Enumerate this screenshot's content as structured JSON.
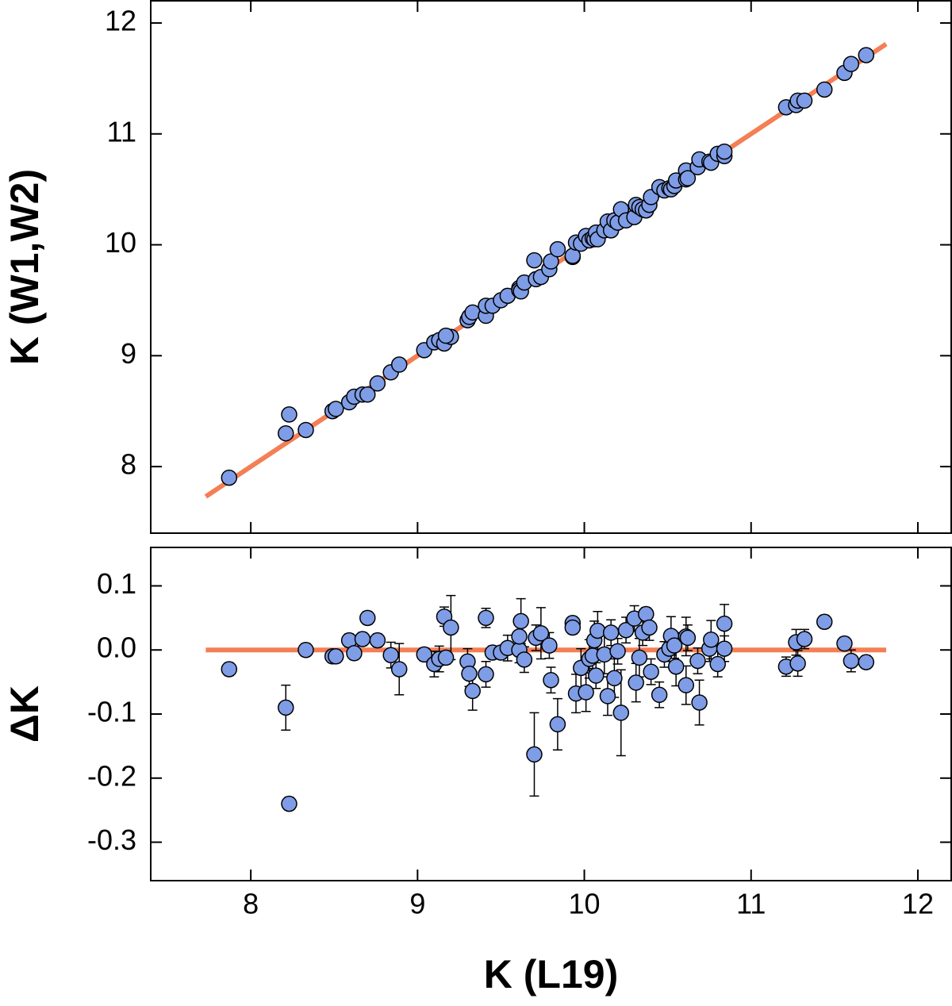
{
  "chart_data": [
    {
      "type": "scatter",
      "ylabel": "K (W1,W2)",
      "xlim": [
        7.4,
        12.2
      ],
      "xticks": [
        8,
        9,
        10,
        11,
        12
      ],
      "ylim": [
        7.4,
        12.2
      ],
      "yticks": [
        8,
        9,
        10,
        11,
        12
      ],
      "series": [
        {
          "mode": "points",
          "color": "#7f9de6",
          "x": [
            7.87,
            8.21,
            8.23,
            8.33,
            8.49,
            8.51,
            8.59,
            8.62,
            8.67,
            8.7,
            8.76,
            8.84,
            8.89,
            9.04,
            9.1,
            9.13,
            9.16,
            9.2,
            9.17,
            9.3,
            9.31,
            9.33,
            9.41,
            9.41,
            9.45,
            9.5,
            9.54,
            9.61,
            9.61,
            9.62,
            9.64,
            9.7,
            9.71,
            9.74,
            9.79,
            9.8,
            9.84,
            9.93,
            9.93,
            9.95,
            9.98,
            10.01,
            10.03,
            10.05,
            10.06,
            10.07,
            10.08,
            10.12,
            10.14,
            10.16,
            10.18,
            10.2,
            10.22,
            10.25,
            10.3,
            10.31,
            10.33,
            10.35,
            10.37,
            10.39,
            10.4,
            10.45,
            10.48,
            10.51,
            10.52,
            10.54,
            10.55,
            10.61,
            10.61,
            10.62,
            10.68,
            10.69,
            10.75,
            10.76,
            10.8,
            10.84,
            10.84,
            11.21,
            11.27,
            11.28,
            11.32,
            11.44,
            11.56,
            11.6,
            11.69
          ],
          "values": [
            7.9,
            8.3,
            8.47,
            8.33,
            8.5,
            8.52,
            8.58,
            8.63,
            8.65,
            8.65,
            8.75,
            8.85,
            8.92,
            9.05,
            9.12,
            9.14,
            9.11,
            9.17,
            9.18,
            9.32,
            9.35,
            9.39,
            9.36,
            9.45,
            9.45,
            9.5,
            9.54,
            9.61,
            9.59,
            9.58,
            9.66,
            9.86,
            9.69,
            9.71,
            9.78,
            9.85,
            9.96,
            9.89,
            9.9,
            10.02,
            10.01,
            10.08,
            10.04,
            10.06,
            10.05,
            10.11,
            10.05,
            10.13,
            10.21,
            10.13,
            10.22,
            10.2,
            10.32,
            10.22,
            10.25,
            10.36,
            10.34,
            10.32,
            10.31,
            10.36,
            10.43,
            10.52,
            10.49,
            10.51,
            10.5,
            10.53,
            10.58,
            10.67,
            10.59,
            10.6,
            10.7,
            10.77,
            10.75,
            10.74,
            10.82,
            10.8,
            10.84,
            11.24,
            11.26,
            11.3,
            11.3,
            11.4,
            11.55,
            11.63,
            11.71
          ]
        },
        {
          "mode": "line",
          "color": "#f47f55",
          "x": [
            7.73,
            11.81
          ],
          "values": [
            7.73,
            11.81
          ]
        }
      ]
    },
    {
      "type": "scatter",
      "ylabel": "ΔK",
      "xlabel": "K (L19)",
      "xlim": [
        7.4,
        12.2
      ],
      "xticks": [
        8,
        9,
        10,
        11,
        12
      ],
      "ylim": [
        -0.36,
        0.16
      ],
      "yticks": [
        0.1,
        {
          "value": 0,
          "label": "0.0"
        },
        -0.1,
        -0.2,
        -0.3
      ],
      "series": [
        {
          "mode": "points",
          "color": "#7f9de6",
          "x": [
            7.87,
            8.21,
            8.23,
            8.33,
            8.49,
            8.51,
            8.59,
            8.62,
            8.67,
            8.7,
            8.76,
            8.84,
            8.89,
            9.04,
            9.1,
            9.13,
            9.16,
            9.2,
            9.17,
            9.3,
            9.31,
            9.33,
            9.41,
            9.41,
            9.45,
            9.5,
            9.54,
            9.61,
            9.61,
            9.62,
            9.64,
            9.7,
            9.71,
            9.74,
            9.79,
            9.8,
            9.84,
            9.93,
            9.93,
            9.95,
            9.98,
            10.01,
            10.03,
            10.05,
            10.06,
            10.07,
            10.08,
            10.12,
            10.14,
            10.16,
            10.18,
            10.2,
            10.22,
            10.25,
            10.3,
            10.31,
            10.33,
            10.35,
            10.37,
            10.39,
            10.4,
            10.45,
            10.48,
            10.51,
            10.52,
            10.54,
            10.55,
            10.61,
            10.61,
            10.62,
            10.68,
            10.69,
            10.75,
            10.76,
            10.8,
            10.84,
            10.84,
            11.21,
            11.27,
            11.28,
            11.32,
            11.44,
            11.56,
            11.6,
            11.69
          ],
          "values": [
            -0.03,
            -0.09,
            -0.24,
            0,
            -0.01,
            -0.01,
            0.015,
            -0.005,
            0.017,
            0.05,
            0.015,
            -0.008,
            -0.03,
            -0.007,
            -0.022,
            -0.014,
            0.052,
            0.035,
            -0.012,
            -0.018,
            -0.037,
            -0.064,
            0.05,
            -0.038,
            -0.004,
            -0.004,
            0.003,
            0,
            0.021,
            0.045,
            -0.015,
            -0.163,
            0.019,
            0.026,
            0.007,
            -0.047,
            -0.116,
            0.042,
            0.035,
            -0.068,
            -0.028,
            -0.066,
            -0.014,
            -0.009,
            0.015,
            -0.04,
            0.03,
            -0.007,
            -0.072,
            0.027,
            -0.044,
            -0.002,
            -0.098,
            0.031,
            0.049,
            -0.051,
            -0.012,
            0.027,
            0.056,
            0.035,
            -0.034,
            -0.07,
            -0.007,
            0.002,
            0.022,
            0.007,
            -0.026,
            -0.055,
            0.021,
            0.019,
            -0.017,
            -0.082,
            0.002,
            0.016,
            -0.022,
            0.041,
            0.002,
            -0.026,
            0.012,
            -0.021,
            0.017,
            0.044,
            0.01,
            -0.017,
            -0.019
          ],
          "errors": [
            0.01,
            0.035,
            0.01,
            0.01,
            0.01,
            0.01,
            0.01,
            0.01,
            0.01,
            0.01,
            0.01,
            0.02,
            0.04,
            0.01,
            0.02,
            0.02,
            0.015,
            0.05,
            0.01,
            0.02,
            0.02,
            0.03,
            0.015,
            0.02,
            0.01,
            0.01,
            0.02,
            0.02,
            0.02,
            0.035,
            0.02,
            0.065,
            0.02,
            0.04,
            0.02,
            0.02,
            0.04,
            0.01,
            0.01,
            0.03,
            0.03,
            0.03,
            0.03,
            0.02,
            0.03,
            0.02,
            0.03,
            0.03,
            0.03,
            0.02,
            0.03,
            0.02,
            0.067,
            0.02,
            0.02,
            0.03,
            0.03,
            0.02,
            0.01,
            0.02,
            0.02,
            0.02,
            0.02,
            0.02,
            0.03,
            0.02,
            0.03,
            0.03,
            0.03,
            0.02,
            0.02,
            0.035,
            0.02,
            0.03,
            0.02,
            0.03,
            0.02,
            0.015,
            0.02,
            0.02,
            0.015,
            0.01,
            0.01,
            0.017,
            0.01
          ]
        },
        {
          "mode": "line",
          "color": "#f47f55",
          "x": [
            7.73,
            11.81
          ],
          "values": [
            0,
            0
          ]
        }
      ]
    }
  ]
}
